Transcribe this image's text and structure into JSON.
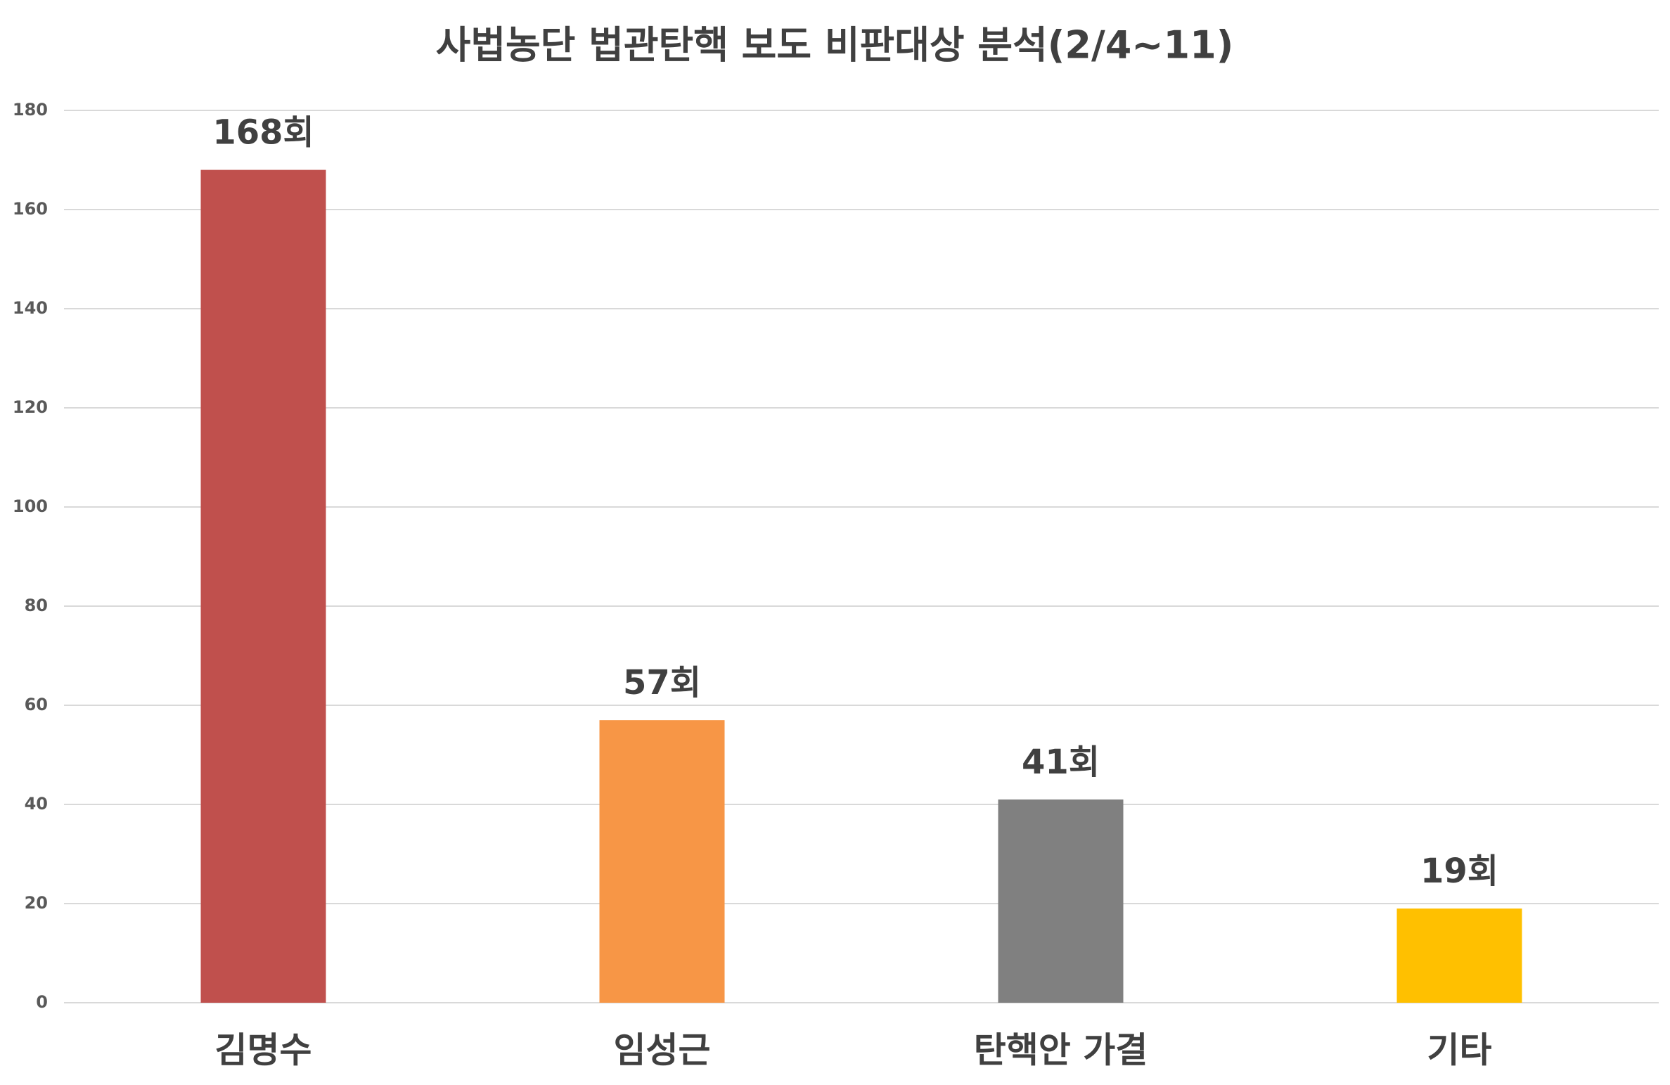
{
  "chart_data": {
    "type": "bar",
    "title": "사법농단 법관탄핵 보도 비판대상 분석(2/4~11)",
    "categories": [
      "김명수",
      "임성근",
      "탄핵안 가결",
      "기타"
    ],
    "values": [
      168,
      57,
      41,
      19
    ],
    "value_labels": [
      "168회",
      "57회",
      "41회",
      "19회"
    ],
    "colors": [
      "#c0504d",
      "#f79646",
      "#808080",
      "#ffc000"
    ],
    "ylim": [
      0,
      180
    ],
    "yticks": [
      0,
      20,
      40,
      60,
      80,
      100,
      120,
      140,
      160,
      180
    ],
    "grid": true
  }
}
